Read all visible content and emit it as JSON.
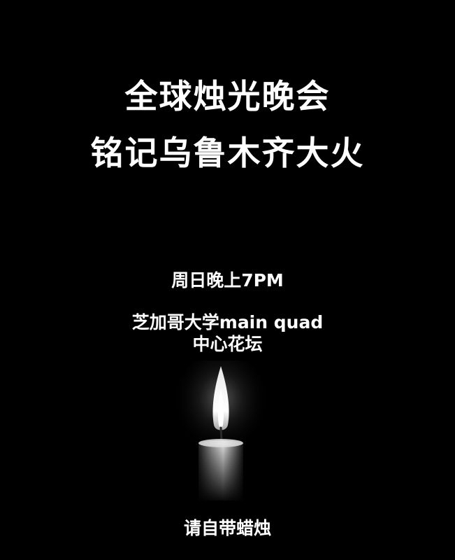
{
  "poster": {
    "title_line1": "全球烛光晚会",
    "title_line2": "铭记乌鲁木齐大火",
    "time": "周日晚上7PM",
    "location_line1": "芝加哥大学main quad",
    "location_line2": "中心花坛",
    "footer": "请自带蜡烛",
    "background_color": "#000000",
    "text_color": "#ffffff",
    "image": "candle-icon"
  }
}
